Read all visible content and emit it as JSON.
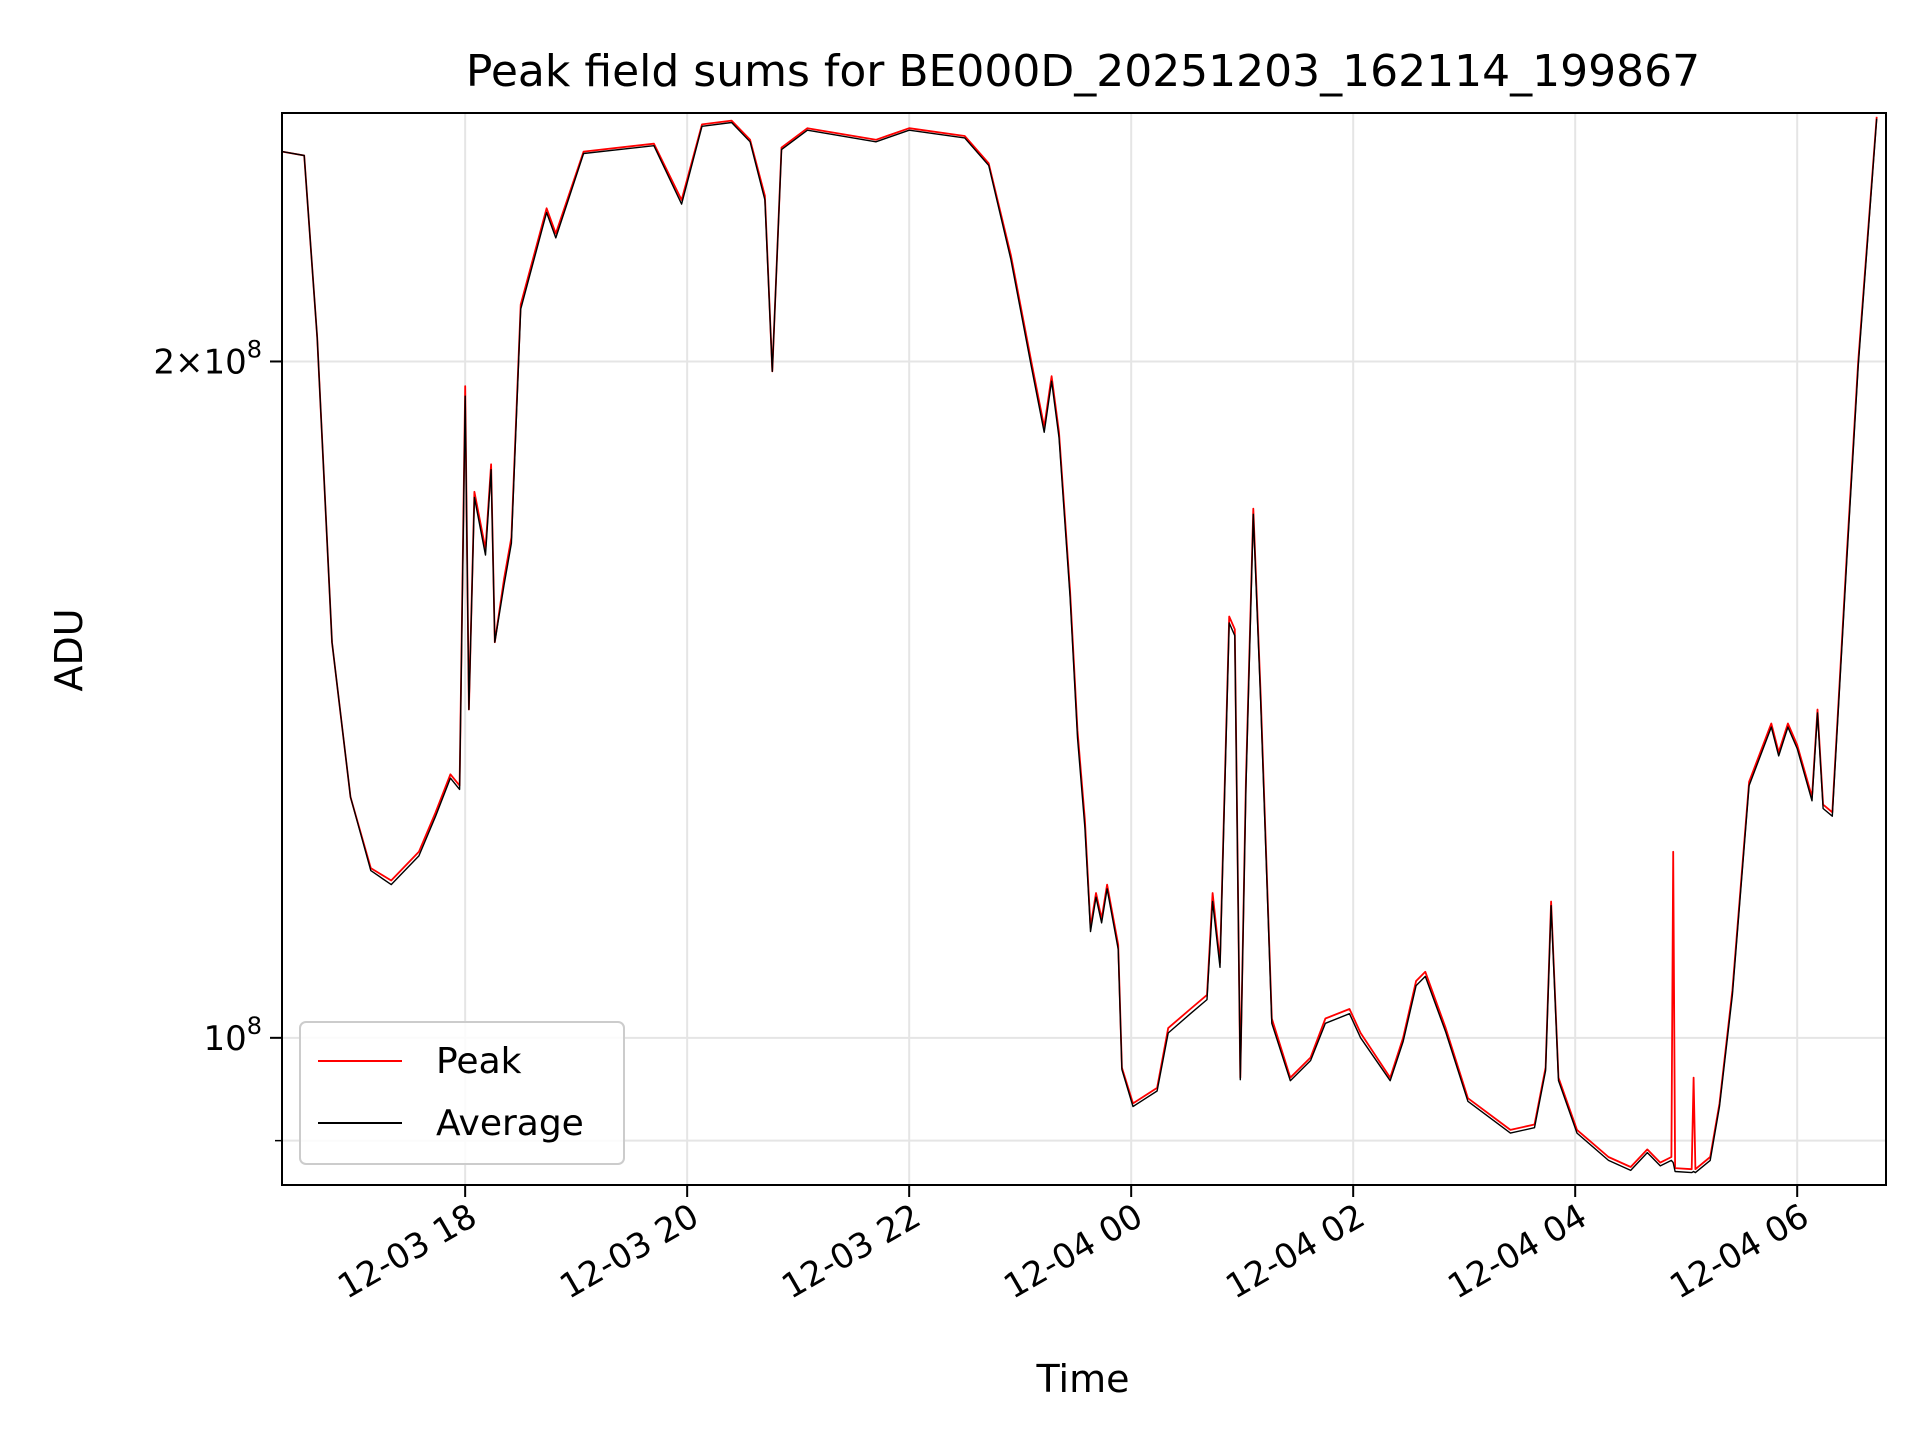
{
  "chart_data": {
    "type": "line",
    "title": "Peak field sums for BE000D_20251203_162114_199867",
    "xlabel": "Time",
    "ylabel": "ADU",
    "xlim": [
      "2025-12-03 16:21",
      "2025-12-04 06:48"
    ],
    "ylim": [
      86000000,
      258000000
    ],
    "yscale": "log",
    "grid": true,
    "legend": "lower-left",
    "x_ticks": [
      "12-03 18",
      "12-03 20",
      "12-03 22",
      "12-04 00",
      "12-04 02",
      "12-04 04",
      "12-04 06"
    ],
    "x_tick_values": [
      "2025-12-03 18:00",
      "2025-12-03 20:00",
      "2025-12-03 22:00",
      "2025-12-04 00:00",
      "2025-12-04 02:00",
      "2025-12-04 04:00",
      "2025-12-04 06:00"
    ],
    "y_major_ticks": [
      {
        "value": 200000000,
        "mantissa": "2",
        "exponent": "8"
      },
      {
        "value": 100000000,
        "mantissa": "",
        "exponent": "8"
      }
    ],
    "y_minor_ticks": [
      90000000
    ],
    "colors": {
      "peak": "#ff0000",
      "average": "#000000",
      "grid": "#e5e5e5"
    },
    "series": [
      {
        "name": "Peak",
        "color": "#ff0000",
        "points": [
          [
            "2025-12-03 16:21",
            248000000
          ],
          [
            "2025-12-03 16:33",
            247000000
          ],
          [
            "2025-12-03 16:40",
            205000000
          ],
          [
            "2025-12-03 16:48",
            150000000
          ],
          [
            "2025-12-03 16:58",
            128000000
          ],
          [
            "2025-12-03 17:09",
            119000000
          ],
          [
            "2025-12-03 17:20",
            117500000
          ],
          [
            "2025-12-03 17:35",
            121000000
          ],
          [
            "2025-12-03 17:44",
            126000000
          ],
          [
            "2025-12-03 17:52",
            131000000
          ],
          [
            "2025-12-03 17:57",
            129500000
          ],
          [
            "2025-12-03 18:00",
            195000000
          ],
          [
            "2025-12-03 18:02",
            140000000
          ],
          [
            "2025-12-03 18:05",
            175000000
          ],
          [
            "2025-12-03 18:11",
            165000000
          ],
          [
            "2025-12-03 18:14",
            180000000
          ],
          [
            "2025-12-03 18:16",
            150000000
          ],
          [
            "2025-12-03 18:21",
            160000000
          ],
          [
            "2025-12-03 18:25",
            167000000
          ],
          [
            "2025-12-03 18:30",
            212000000
          ],
          [
            "2025-12-03 18:44",
            234000000
          ],
          [
            "2025-12-03 18:49",
            228000000
          ],
          [
            "2025-12-03 19:04",
            248000000
          ],
          [
            "2025-12-03 19:42",
            250000000
          ],
          [
            "2025-12-03 19:57",
            236000000
          ],
          [
            "2025-12-03 20:08",
            255000000
          ],
          [
            "2025-12-03 20:24",
            256000000
          ],
          [
            "2025-12-03 20:34",
            251000000
          ],
          [
            "2025-12-03 20:42",
            237000000
          ],
          [
            "2025-12-03 20:46",
            198000000
          ],
          [
            "2025-12-03 20:51",
            249000000
          ],
          [
            "2025-12-03 21:05",
            254000000
          ],
          [
            "2025-12-03 21:42",
            251000000
          ],
          [
            "2025-12-03 22:00",
            254000000
          ],
          [
            "2025-12-03 22:30",
            252000000
          ],
          [
            "2025-12-03 22:43",
            245000000
          ],
          [
            "2025-12-03 22:55",
            223000000
          ],
          [
            "2025-12-03 23:06",
            200000000
          ],
          [
            "2025-12-03 23:13",
            187000000
          ],
          [
            "2025-12-03 23:17",
            197000000
          ],
          [
            "2025-12-03 23:21",
            186000000
          ],
          [
            "2025-12-03 23:27",
            158000000
          ],
          [
            "2025-12-03 23:31",
            137000000
          ],
          [
            "2025-12-03 23:35",
            125000000
          ],
          [
            "2025-12-03 23:38",
            112000000
          ],
          [
            "2025-12-03 23:41",
            116000000
          ],
          [
            "2025-12-03 23:44",
            113000000
          ],
          [
            "2025-12-03 23:47",
            117000000
          ],
          [
            "2025-12-03 23:53",
            110000000
          ],
          [
            "2025-12-03 23:55",
            97000000
          ],
          [
            "2025-12-04 00:01",
            93500000
          ],
          [
            "2025-12-04 00:14",
            95000000
          ],
          [
            "2025-12-04 00:20",
            101000000
          ],
          [
            "2025-12-04 00:32",
            103000000
          ],
          [
            "2025-12-04 00:41",
            104500000
          ],
          [
            "2025-12-04 00:44",
            116000000
          ],
          [
            "2025-12-04 00:48",
            108000000
          ],
          [
            "2025-12-04 00:53",
            154000000
          ],
          [
            "2025-12-04 00:56",
            152000000
          ],
          [
            "2025-12-04 00:59",
            96000000
          ],
          [
            "2025-12-04 01:02",
            130000000
          ],
          [
            "2025-12-04 01:06",
            172000000
          ],
          [
            "2025-12-04 01:10",
            142000000
          ],
          [
            "2025-12-04 01:16",
            102000000
          ],
          [
            "2025-12-04 01:26",
            96000000
          ],
          [
            "2025-12-04 01:37",
            98000000
          ],
          [
            "2025-12-04 01:45",
            102000000
          ],
          [
            "2025-12-04 01:58",
            103000000
          ],
          [
            "2025-12-04 02:04",
            100500000
          ],
          [
            "2025-12-04 02:20",
            96000000
          ],
          [
            "2025-12-04 02:27",
            100000000
          ],
          [
            "2025-12-04 02:34",
            106000000
          ],
          [
            "2025-12-04 02:39",
            107000000
          ],
          [
            "2025-12-04 02:50",
            101000000
          ],
          [
            "2025-12-04 03:02",
            94000000
          ],
          [
            "2025-12-04 03:25",
            91000000
          ],
          [
            "2025-12-04 03:38",
            91500000
          ],
          [
            "2025-12-04 03:44",
            97000000
          ],
          [
            "2025-12-04 03:47",
            115000000
          ],
          [
            "2025-12-04 03:51",
            96000000
          ],
          [
            "2025-12-04 04:01",
            91000000
          ],
          [
            "2025-12-04 04:18",
            88500000
          ],
          [
            "2025-12-04 04:30",
            87600000
          ],
          [
            "2025-12-04 04:39",
            89200000
          ],
          [
            "2025-12-04 04:46",
            88000000
          ],
          [
            "2025-12-04 04:52",
            88500000
          ],
          [
            "2025-12-04 04:53",
            121000000
          ],
          [
            "2025-12-04 04:54",
            87500000
          ],
          [
            "2025-12-04 05:03",
            87400000
          ],
          [
            "2025-12-04 05:04",
            96000000
          ],
          [
            "2025-12-04 05:05",
            87400000
          ],
          [
            "2025-12-04 05:13",
            88500000
          ],
          [
            "2025-12-04 05:18",
            93500000
          ],
          [
            "2025-12-04 05:25",
            105000000
          ],
          [
            "2025-12-04 05:34",
            130000000
          ],
          [
            "2025-12-04 05:46",
            138000000
          ],
          [
            "2025-12-04 05:50",
            134000000
          ],
          [
            "2025-12-04 05:55",
            138000000
          ],
          [
            "2025-12-04 06:00",
            135000000
          ],
          [
            "2025-12-04 06:08",
            128000000
          ],
          [
            "2025-12-04 06:11",
            140000000
          ],
          [
            "2025-12-04 06:14",
            127000000
          ],
          [
            "2025-12-04 06:19",
            126000000
          ],
          [
            "2025-12-04 06:27",
            165000000
          ],
          [
            "2025-12-04 06:33",
            200000000
          ],
          [
            "2025-12-04 06:43",
            257000000
          ]
        ]
      },
      {
        "name": "Average",
        "color": "#000000",
        "points": [
          [
            "2025-12-03 16:21",
            248000000
          ],
          [
            "2025-12-03 16:33",
            247000000
          ],
          [
            "2025-12-03 16:40",
            205000000
          ],
          [
            "2025-12-03 16:48",
            150000000
          ],
          [
            "2025-12-03 16:58",
            128000000
          ],
          [
            "2025-12-03 17:09",
            118700000
          ],
          [
            "2025-12-03 17:20",
            117000000
          ],
          [
            "2025-12-03 17:35",
            120500000
          ],
          [
            "2025-12-03 17:44",
            125500000
          ],
          [
            "2025-12-03 17:52",
            130500000
          ],
          [
            "2025-12-03 17:57",
            129000000
          ],
          [
            "2025-12-03 18:00",
            193000000
          ],
          [
            "2025-12-03 18:02",
            140000000
          ],
          [
            "2025-12-03 18:05",
            174000000
          ],
          [
            "2025-12-03 18:11",
            164000000
          ],
          [
            "2025-12-03 18:14",
            179000000
          ],
          [
            "2025-12-03 18:16",
            150000000
          ],
          [
            "2025-12-03 18:21",
            159000000
          ],
          [
            "2025-12-03 18:25",
            166000000
          ],
          [
            "2025-12-03 18:30",
            211000000
          ],
          [
            "2025-12-03 18:44",
            233000000
          ],
          [
            "2025-12-03 18:49",
            227000000
          ],
          [
            "2025-12-03 19:04",
            247500000
          ],
          [
            "2025-12-03 19:42",
            249500000
          ],
          [
            "2025-12-03 19:57",
            235000000
          ],
          [
            "2025-12-03 20:08",
            254500000
          ],
          [
            "2025-12-03 20:24",
            255500000
          ],
          [
            "2025-12-03 20:34",
            250500000
          ],
          [
            "2025-12-03 20:42",
            236000000
          ],
          [
            "2025-12-03 20:46",
            198000000
          ],
          [
            "2025-12-03 20:51",
            248500000
          ],
          [
            "2025-12-03 21:05",
            253500000
          ],
          [
            "2025-12-03 21:42",
            250500000
          ],
          [
            "2025-12-03 22:00",
            253500000
          ],
          [
            "2025-12-03 22:30",
            251500000
          ],
          [
            "2025-12-03 22:43",
            244500000
          ],
          [
            "2025-12-03 22:55",
            222000000
          ],
          [
            "2025-12-03 23:06",
            199000000
          ],
          [
            "2025-12-03 23:13",
            186000000
          ],
          [
            "2025-12-03 23:17",
            196000000
          ],
          [
            "2025-12-03 23:21",
            185000000
          ],
          [
            "2025-12-03 23:27",
            157000000
          ],
          [
            "2025-12-03 23:31",
            136000000
          ],
          [
            "2025-12-03 23:35",
            124000000
          ],
          [
            "2025-12-03 23:38",
            111500000
          ],
          [
            "2025-12-03 23:41",
            115500000
          ],
          [
            "2025-12-03 23:44",
            112500000
          ],
          [
            "2025-12-03 23:47",
            116500000
          ],
          [
            "2025-12-03 23:53",
            109500000
          ],
          [
            "2025-12-03 23:55",
            96800000
          ],
          [
            "2025-12-04 00:01",
            93200000
          ],
          [
            "2025-12-04 00:14",
            94700000
          ],
          [
            "2025-12-04 00:20",
            100500000
          ],
          [
            "2025-12-04 00:32",
            102500000
          ],
          [
            "2025-12-04 00:41",
            104000000
          ],
          [
            "2025-12-04 00:44",
            115000000
          ],
          [
            "2025-12-04 00:48",
            107500000
          ],
          [
            "2025-12-04 00:53",
            153000000
          ],
          [
            "2025-12-04 00:56",
            151000000
          ],
          [
            "2025-12-04 00:59",
            95800000
          ],
          [
            "2025-12-04 01:02",
            129000000
          ],
          [
            "2025-12-04 01:06",
            171000000
          ],
          [
            "2025-12-04 01:10",
            141000000
          ],
          [
            "2025-12-04 01:16",
            101500000
          ],
          [
            "2025-12-04 01:26",
            95700000
          ],
          [
            "2025-12-04 01:37",
            97700000
          ],
          [
            "2025-12-04 01:45",
            101500000
          ],
          [
            "2025-12-04 01:58",
            102500000
          ],
          [
            "2025-12-04 02:04",
            100000000
          ],
          [
            "2025-12-04 02:20",
            95700000
          ],
          [
            "2025-12-04 02:27",
            99600000
          ],
          [
            "2025-12-04 02:34",
            105500000
          ],
          [
            "2025-12-04 02:39",
            106500000
          ],
          [
            "2025-12-04 02:50",
            100600000
          ],
          [
            "2025-12-04 03:02",
            93700000
          ],
          [
            "2025-12-04 03:25",
            90700000
          ],
          [
            "2025-12-04 03:38",
            91200000
          ],
          [
            "2025-12-04 03:44",
            96700000
          ],
          [
            "2025-12-04 03:47",
            114500000
          ],
          [
            "2025-12-04 03:51",
            95700000
          ],
          [
            "2025-12-04 04:01",
            90700000
          ],
          [
            "2025-12-04 04:18",
            88200000
          ],
          [
            "2025-12-04 04:30",
            87300000
          ],
          [
            "2025-12-04 04:39",
            88900000
          ],
          [
            "2025-12-04 04:46",
            87700000
          ],
          [
            "2025-12-04 04:52",
            88200000
          ],
          [
            "2025-12-04 04:53",
            88000000
          ],
          [
            "2025-12-04 04:54",
            87200000
          ],
          [
            "2025-12-04 05:03",
            87100000
          ],
          [
            "2025-12-04 05:04",
            87200000
          ],
          [
            "2025-12-04 05:05",
            87100000
          ],
          [
            "2025-12-04 05:13",
            88200000
          ],
          [
            "2025-12-04 05:18",
            93200000
          ],
          [
            "2025-12-04 05:25",
            104500000
          ],
          [
            "2025-12-04 05:34",
            129500000
          ],
          [
            "2025-12-04 05:46",
            137500000
          ],
          [
            "2025-12-04 05:50",
            133500000
          ],
          [
            "2025-12-04 05:55",
            137500000
          ],
          [
            "2025-12-04 06:00",
            134500000
          ],
          [
            "2025-12-04 06:08",
            127500000
          ],
          [
            "2025-12-04 06:11",
            139500000
          ],
          [
            "2025-12-04 06:14",
            126500000
          ],
          [
            "2025-12-04 06:19",
            125500000
          ],
          [
            "2025-12-04 06:27",
            164000000
          ],
          [
            "2025-12-04 06:33",
            199000000
          ],
          [
            "2025-12-04 06:43",
            256500000
          ]
        ]
      }
    ]
  }
}
